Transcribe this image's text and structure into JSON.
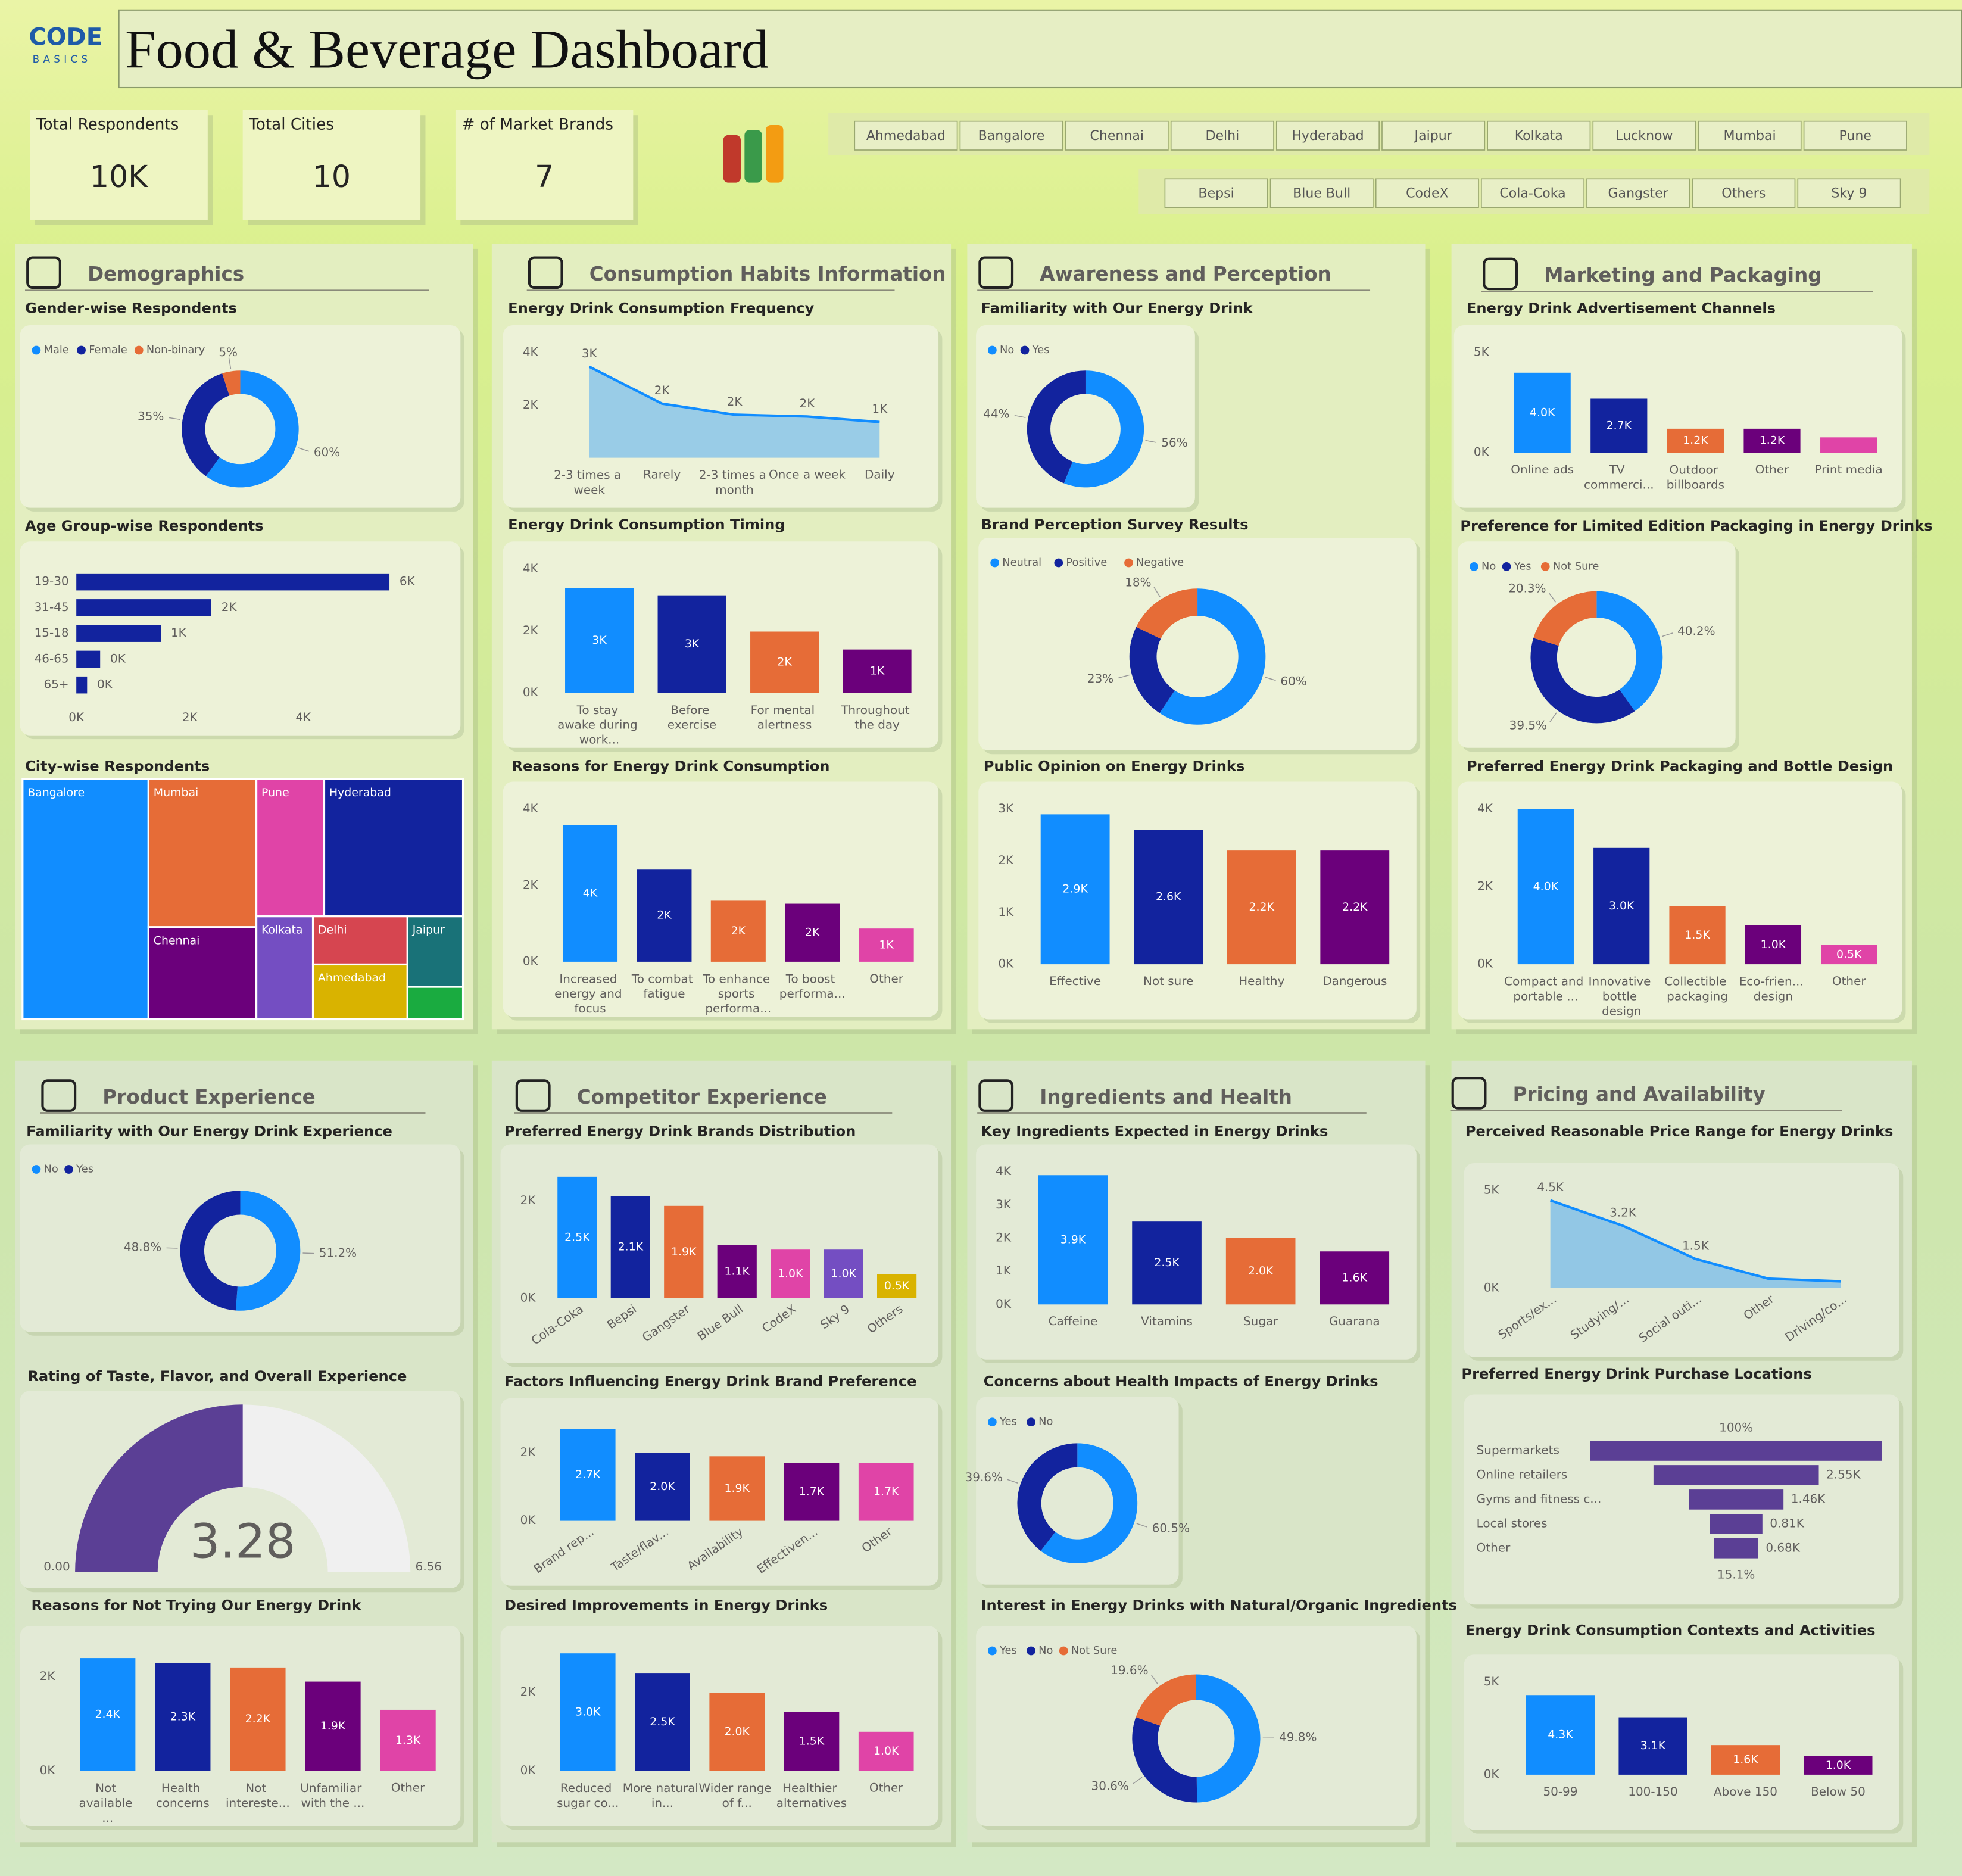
{
  "header": {
    "logo_top": "CODE",
    "logo_bottom": "BASICS",
    "title": "Food & Beverage Dashboard"
  },
  "kpis": [
    {
      "label": "Total Respondents",
      "value": "10K"
    },
    {
      "label": "Total Cities",
      "value": "10"
    },
    {
      "label": "# of Market Brands",
      "value": "7"
    }
  ],
  "filters": {
    "cities": [
      "Ahmedabad",
      "Bangalore",
      "Chennai",
      "Delhi",
      "Hyderabad",
      "Jaipur",
      "Kolkata",
      "Lucknow",
      "Mumbai",
      "Pune"
    ],
    "brands": [
      "Bepsi",
      "Blue Bull",
      "CodeX",
      "Cola-Coka",
      "Gangster",
      "Others",
      "Sky 9"
    ]
  },
  "sections": [
    "Demographics",
    "Consumption Habits Information",
    "Awareness and Perception",
    "Marketing and Packaging",
    "Product Experience",
    "Competitor Experience",
    "Ingredients and Health",
    "Pricing and Availability"
  ],
  "chart_data": [
    {
      "type": "donut",
      "title": "Gender-wise Respondents",
      "categories": [
        "Male",
        "Female",
        "Non-binary"
      ],
      "values": [
        60,
        35,
        5
      ],
      "value_labels": [
        "60%",
        "35%",
        "5%"
      ],
      "colors": [
        "#118DFF",
        "#12239E",
        "#E66C37"
      ]
    },
    {
      "type": "bar",
      "orientation": "horizontal",
      "title": "Age Group-wise Respondents",
      "categories": [
        "19-30",
        "31-45",
        "15-18",
        "46-65",
        "65+"
      ],
      "values": [
        5520,
        2380,
        1490,
        420,
        190
      ],
      "value_labels": [
        "6K",
        "2K",
        "1K",
        "0K",
        "0K"
      ],
      "color": "#12239E",
      "xlim": [
        0,
        6000
      ],
      "xticks": [
        {
          "value": 0,
          "label": "0K"
        },
        {
          "value": 2000,
          "label": "2K"
        },
        {
          "value": 4000,
          "label": "4K"
        }
      ]
    },
    {
      "type": "treemap",
      "title": "City-wise Respondents",
      "categories": [
        "Bangalore",
        "Mumbai",
        "Chennai",
        "Pune",
        "Hyderabad",
        "Kolkata",
        "Delhi",
        "Ahmedabad",
        "Jaipur",
        null
      ],
      "values": [
        2860,
        1510,
        940,
        880,
        1800,
        550,
        430,
        490,
        370,
        170
      ],
      "colors": [
        "#118DFF",
        "#E66C37",
        "#6B007B",
        "#E044A7",
        "#12239E",
        "#744EC2",
        "#D64550",
        "#D9B300",
        "#197278",
        "#1AAB40"
      ]
    },
    {
      "type": "area",
      "title": "Energy Drink Consumption Frequency",
      "categories": [
        "2-3 times a week",
        "Rarely",
        "2-3 times a month",
        "Once a week",
        "Daily"
      ],
      "values": [
        3466,
        2060,
        1640,
        1570,
        1360
      ],
      "value_labels": [
        "3K",
        "2K",
        "2K",
        "2K",
        "1K"
      ],
      "color": "#118DFF",
      "ylim": [
        0,
        4000
      ],
      "yticks": [
        {
          "value": 2000,
          "label": "2K"
        },
        {
          "value": 4000,
          "label": "4K"
        }
      ]
    },
    {
      "type": "bar",
      "title": "Energy Drink Consumption Timing",
      "categories": [
        "To stay awake during work...",
        "Before exercise",
        "For mental alertness",
        "Throughout the day"
      ],
      "values": [
        3380,
        3150,
        1980,
        1400
      ],
      "value_labels": [
        "3K",
        "3K",
        "2K",
        "1K"
      ],
      "colors": [
        "#118DFF",
        "#12239E",
        "#E66C37",
        "#6B007B"
      ],
      "ylim": [
        0,
        4000
      ],
      "yticks": [
        {
          "value": 0,
          "label": "0K"
        },
        {
          "value": 2000,
          "label": "2K"
        },
        {
          "value": 4000,
          "label": "4K"
        }
      ]
    },
    {
      "type": "bar",
      "title": "Reasons for Energy Drink Consumption",
      "categories": [
        "Increased energy and focus",
        "To combat fatigue",
        "To enhance sports performa...",
        "To boost performa...",
        "Other"
      ],
      "values": [
        3580,
        2430,
        1600,
        1520,
        870
      ],
      "value_labels": [
        "4K",
        "2K",
        "2K",
        "2K",
        "1K"
      ],
      "colors": [
        "#118DFF",
        "#12239E",
        "#E66C37",
        "#6B007B",
        "#E044A7"
      ],
      "ylim": [
        0,
        4000
      ],
      "yticks": [
        {
          "value": 0,
          "label": "0K"
        },
        {
          "value": 2000,
          "label": "2K"
        },
        {
          "value": 4000,
          "label": "4K"
        }
      ]
    },
    {
      "type": "donut",
      "title": "Familiarity with Our Energy Drink",
      "categories": [
        "No",
        "Yes"
      ],
      "values": [
        56,
        44
      ],
      "value_labels": [
        "56%",
        "44%"
      ],
      "colors": [
        "#118DFF",
        "#12239E"
      ]
    },
    {
      "type": "donut",
      "title": "Brand Perception Survey Results",
      "categories": [
        "Neutral",
        "Positive",
        "Negative"
      ],
      "values": [
        60,
        23,
        18
      ],
      "value_labels": [
        "60%",
        "23%",
        "18%"
      ],
      "colors": [
        "#118DFF",
        "#12239E",
        "#E66C37"
      ]
    },
    {
      "type": "bar",
      "title": "Public Opinion on Energy Drinks",
      "categories": [
        "Effective",
        "Not sure",
        "Healthy",
        "Dangerous"
      ],
      "values": [
        2900,
        2600,
        2200,
        2200
      ],
      "value_labels": [
        "2.9K",
        "2.6K",
        "2.2K",
        "2.2K"
      ],
      "colors": [
        "#118DFF",
        "#12239E",
        "#E66C37",
        "#6B007B"
      ],
      "ylim": [
        0,
        3000
      ],
      "yticks": [
        {
          "value": 0,
          "label": "0K"
        },
        {
          "value": 1000,
          "label": "1K"
        },
        {
          "value": 2000,
          "label": "2K"
        },
        {
          "value": 3000,
          "label": "3K"
        }
      ]
    },
    {
      "type": "bar",
      "title": "Energy Drink Advertisement Channels",
      "categories": [
        "Online ads",
        "TV commerci...",
        "Outdoor billboards",
        "Other",
        "Print media"
      ],
      "values": [
        4000,
        2700,
        1200,
        1200,
        770
      ],
      "value_labels": [
        "4.0K",
        "2.7K",
        "1.2K",
        "1.2K",
        null
      ],
      "colors": [
        "#118DFF",
        "#12239E",
        "#E66C37",
        "#6B007B",
        "#E044A7"
      ],
      "ylim": [
        0,
        5000
      ],
      "yticks": [
        {
          "value": 0,
          "label": "0K"
        },
        {
          "value": 5000,
          "label": "5K"
        }
      ]
    },
    {
      "type": "donut",
      "title": "Preference for Limited Edition Packaging in Energy Drinks",
      "categories": [
        "No",
        "Yes",
        "Not Sure"
      ],
      "values": [
        40.2,
        39.5,
        20.3
      ],
      "value_labels": [
        "40.2%",
        "39.5%",
        "20.3%"
      ],
      "colors": [
        "#118DFF",
        "#12239E",
        "#E66C37"
      ]
    },
    {
      "type": "bar",
      "title": "Preferred Energy Drink Packaging and Bottle Design",
      "categories": [
        "Compact and portable ...",
        "Innovative bottle design",
        "Collectible packaging",
        "Eco-frien... design",
        "Other"
      ],
      "values": [
        4000,
        3000,
        1500,
        1000,
        500
      ],
      "value_labels": [
        "4.0K",
        "3.0K",
        "1.5K",
        "1.0K",
        "0.5K"
      ],
      "colors": [
        "#118DFF",
        "#12239E",
        "#E66C37",
        "#6B007B",
        "#E044A7"
      ],
      "ylim": [
        0,
        4000
      ],
      "yticks": [
        {
          "value": 0,
          "label": "0K"
        },
        {
          "value": 2000,
          "label": "2K"
        },
        {
          "value": 4000,
          "label": "4K"
        }
      ]
    },
    {
      "type": "donut",
      "title": "Familiarity with Our Energy Drink Experience",
      "categories": [
        "No",
        "Yes"
      ],
      "values": [
        51.2,
        48.8
      ],
      "value_labels": [
        "51.2%",
        "48.8%"
      ],
      "colors": [
        "#118DFF",
        "#12239E"
      ]
    },
    {
      "type": "gauge",
      "title": "Rating of Taste, Flavor, and Overall Experience",
      "value": 3.28,
      "min": {
        "value": 0,
        "label": "0.00"
      },
      "max": 6.56,
      "color": "#5B3F95",
      "track_color": "#F0F0F0"
    },
    {
      "type": "bar",
      "title": "Reasons for Not Trying Our Energy Drink",
      "categories": [
        "Not available ...",
        "Health concerns",
        "Not intereste...",
        "Unfamiliar with the ...",
        "Other"
      ],
      "values": [
        2400,
        2300,
        2200,
        1900,
        1300
      ],
      "value_labels": [
        "2.4K",
        "2.3K",
        "2.2K",
        "1.9K",
        "1.3K"
      ],
      "colors": [
        "#118DFF",
        "#12239E",
        "#E66C37",
        "#6B007B",
        "#E044A7"
      ],
      "ylim": [
        0,
        2500
      ],
      "yticks": [
        {
          "value": 0,
          "label": "0K"
        },
        {
          "value": 2000,
          "label": "2K"
        }
      ]
    },
    {
      "type": "bar",
      "title": "Preferred Energy Drink Brands Distribution",
      "categories": [
        "Cola-Coka",
        "Bepsi",
        "Gangster",
        "Blue Bull",
        "CodeX",
        "Sky 9",
        "Others"
      ],
      "values": [
        2500,
        2100,
        1900,
        1100,
        1000,
        1000,
        500
      ],
      "value_labels": [
        "2.5K",
        "2.1K",
        "1.9K",
        "1.1K",
        "1.0K",
        "1.0K",
        "0.5K"
      ],
      "colors": [
        "#118DFF",
        "#12239E",
        "#E66C37",
        "#6B007B",
        "#E044A7",
        "#744EC2",
        "#D9B300"
      ],
      "ylim": [
        0,
        2600
      ],
      "yticks": [
        {
          "value": 0,
          "label": "0K"
        },
        {
          "value": 2000,
          "label": "2K"
        }
      ]
    },
    {
      "type": "bar",
      "title": "Factors Influencing Energy Drink Brand Preference",
      "categories": [
        "Brand rep...",
        "Taste/flav...",
        "Availability",
        "Effectiven...",
        "Other"
      ],
      "values": [
        2700,
        2000,
        1900,
        1700,
        1700
      ],
      "value_labels": [
        "2.7K",
        "2.0K",
        "1.9K",
        "1.7K",
        "1.7K"
      ],
      "colors": [
        "#118DFF",
        "#12239E",
        "#E66C37",
        "#6B007B",
        "#E044A7"
      ],
      "ylim": [
        0,
        2800
      ],
      "yticks": [
        {
          "value": 0,
          "label": "0K"
        },
        {
          "value": 2000,
          "label": "2K"
        }
      ]
    },
    {
      "type": "bar",
      "title": "Desired Improvements in Energy Drinks",
      "categories": [
        "Reduced sugar co...",
        "More natural in...",
        "Wider range of f...",
        "Healthier alternatives",
        "Other"
      ],
      "values": [
        3000,
        2500,
        2000,
        1500,
        1000
      ],
      "value_labels": [
        "3.0K",
        "2.5K",
        "2.0K",
        "1.5K",
        "1.0K"
      ],
      "colors": [
        "#118DFF",
        "#12239E",
        "#E66C37",
        "#6B007B",
        "#E044A7"
      ],
      "ylim": [
        0,
        3000
      ],
      "yticks": [
        {
          "value": 0,
          "label": "0K"
        },
        {
          "value": 2000,
          "label": "2K"
        }
      ]
    },
    {
      "type": "bar",
      "title": "Key Ingredients Expected in Energy Drinks",
      "categories": [
        "Caffeine",
        "Vitamins",
        "Sugar",
        "Guarana"
      ],
      "values": [
        3900,
        2500,
        2000,
        1600
      ],
      "value_labels": [
        "3.9K",
        "2.5K",
        "2.0K",
        "1.6K"
      ],
      "colors": [
        "#118DFF",
        "#12239E",
        "#E66C37",
        "#6B007B"
      ],
      "ylim": [
        0,
        4000
      ],
      "yticks": [
        {
          "value": 0,
          "label": "0K"
        },
        {
          "value": 1000,
          "label": "1K"
        },
        {
          "value": 2000,
          "label": "2K"
        },
        {
          "value": 3000,
          "label": "3K"
        },
        {
          "value": 4000,
          "label": "4K"
        }
      ]
    },
    {
      "type": "donut",
      "title": "Concerns about Health Impacts of Energy Drinks",
      "categories": [
        "Yes",
        "No"
      ],
      "values": [
        60.5,
        39.6
      ],
      "value_labels": [
        "60.5%",
        "39.6%"
      ],
      "colors": [
        "#118DFF",
        "#12239E"
      ]
    },
    {
      "type": "donut",
      "title": "Interest in Energy Drinks with Natural/Organic Ingredients",
      "categories": [
        "Yes",
        "No",
        "Not Sure"
      ],
      "values": [
        49.8,
        30.6,
        19.6
      ],
      "value_labels": [
        "49.8%",
        "30.6%",
        "19.6%"
      ],
      "colors": [
        "#118DFF",
        "#12239E",
        "#E66C37"
      ]
    },
    {
      "type": "area",
      "title": "Perceived Reasonable Price Range for Energy Drinks",
      "categories": [
        "Sports/ex...",
        "Studying/...",
        "Social outi...",
        "Other",
        "Driving/co..."
      ],
      "values": [
        4500,
        3200,
        1500,
        490,
        350
      ],
      "value_labels": [
        "4.5K",
        "3.2K",
        "1.5K",
        null,
        null
      ],
      "color": "#118DFF",
      "ylim": [
        0,
        5000
      ],
      "yticks": [
        {
          "value": 0,
          "label": "0K"
        },
        {
          "value": 5000,
          "label": "5K"
        }
      ]
    },
    {
      "type": "funnel",
      "title": "Preferred Energy Drink Purchase Locations",
      "categories": [
        "Supermarkets",
        "Online retailers",
        "Gyms and fitness c...",
        "Local stores",
        "Other"
      ],
      "values": [
        4500,
        2550,
        1460,
        810,
        680
      ],
      "value_labels": [
        null,
        "2.55K",
        "1.46K",
        "0.81K",
        "0.68K"
      ],
      "first_percent": "100%",
      "last_percent": "15.1%",
      "color": "#5B3F95"
    },
    {
      "type": "bar",
      "title": "Energy Drink Consumption Contexts and Activities",
      "categories": [
        "50-99",
        "100-150",
        "Above 150",
        "Below 50"
      ],
      "values": [
        4300,
        3100,
        1600,
        1000
      ],
      "value_labels": [
        "4.3K",
        "3.1K",
        "1.6K",
        "1.0K"
      ],
      "colors": [
        "#118DFF",
        "#12239E",
        "#E66C37",
        "#6B007B"
      ],
      "ylim": [
        0,
        5000
      ],
      "yticks": [
        {
          "value": 0,
          "label": "0K"
        },
        {
          "value": 5000,
          "label": "5K"
        }
      ]
    }
  ]
}
